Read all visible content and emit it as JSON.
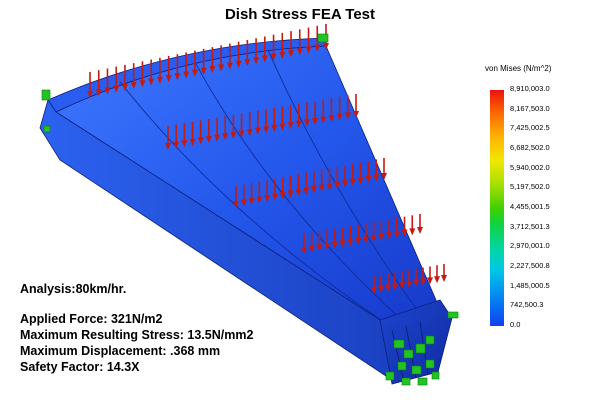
{
  "title": "Dish Stress FEA Test",
  "legend": {
    "title": "von Mises (N/m^2)",
    "labels": [
      "8,910,003.0",
      "8,167,503.0",
      "7,425,002.5",
      "6,682,502.0",
      "5,940,002.0",
      "5,197,502.0",
      "4,455,001.5",
      "3,712,501.3",
      "2,970,001.0",
      "2,227,500.8",
      "1,485,000.5",
      "742,500.3",
      "0.0"
    ]
  },
  "info": {
    "analysis": "Analysis:80km/hr.",
    "applied_force": "Applied Force: 321N/m2",
    "max_stress": "Maximum Resulting Stress: 13.5N/mm2",
    "max_displacement": "Maximum Displacement: .368 mm",
    "safety_factor": "Safety Factor: 14.3X"
  },
  "colors": {
    "body_blue": "#1a4fe0",
    "load_arrow": "#c41a10",
    "fixture": "#22c422"
  }
}
